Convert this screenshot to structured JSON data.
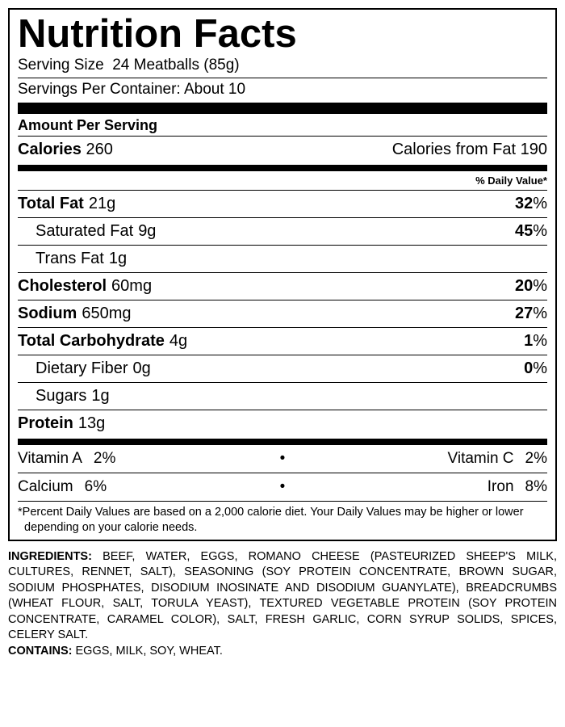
{
  "title": "Nutrition Facts",
  "serving_size_label": "Serving Size",
  "serving_size_value": "24 Meatballs (85g)",
  "servings_per_container_label": "Servings Per Container:",
  "servings_per_container_value": "About 10",
  "amount_per_serving": "Amount Per Serving",
  "calories_label": "Calories",
  "calories_value": "260",
  "calories_from_fat_label": "Calories from Fat",
  "calories_from_fat_value": "190",
  "daily_value_header": "% Daily Value*",
  "rows": {
    "total_fat": {
      "label": "Total Fat",
      "value": "21g",
      "dv": "32"
    },
    "sat_fat": {
      "label": "Saturated Fat",
      "value": "9g",
      "dv": "45"
    },
    "trans_fat": {
      "label": "Trans Fat",
      "value": "1g",
      "dv": ""
    },
    "cholesterol": {
      "label": "Cholesterol",
      "value": "60mg",
      "dv": "20"
    },
    "sodium": {
      "label": "Sodium",
      "value": "650mg",
      "dv": "27"
    },
    "total_carb": {
      "label": "Total Carbohydrate",
      "value": "4g",
      "dv": "1"
    },
    "fiber": {
      "label": "Dietary Fiber",
      "value": "0g",
      "dv": "0"
    },
    "sugars": {
      "label": "Sugars",
      "value": "1g",
      "dv": ""
    },
    "protein": {
      "label": "Protein",
      "value": "13g",
      "dv": ""
    }
  },
  "vitamins": {
    "vit_a": {
      "label": "Vitamin A",
      "value": "2%"
    },
    "vit_c": {
      "label": "Vitamin C",
      "value": "2%"
    },
    "calcium": {
      "label": "Calcium",
      "value": "6%"
    },
    "iron": {
      "label": "Iron",
      "value": "8%"
    }
  },
  "footnote": "*Percent Daily Values are based on a 2,000 calorie diet.  Your Daily Values may be higher or lower depending on your calorie needs.",
  "ingredients_label": "INGREDIENTS:",
  "ingredients_text": "BEEF, WATER, EGGS, ROMANO CHEESE (PASTEURIZED SHEEP'S MILK, CULTURES, RENNET, SALT), SEASONING (SOY PROTEIN CONCENTRATE, BROWN SUGAR, SODIUM PHOSPHATES, DISODIUM INOSINATE AND DISODIUM GUANYLATE), BREADCRUMBS (WHEAT FLOUR, SALT, TORULA YEAST), TEXTURED VEGETABLE PROTEIN (SOY PROTEIN CONCENTRATE, CARAMEL COLOR), SALT, FRESH GARLIC, CORN SYRUP SOLIDS, SPICES, CELERY SALT.",
  "contains_label": "CONTAINS:",
  "contains_text": "EGGS, MILK, SOY, WHEAT."
}
